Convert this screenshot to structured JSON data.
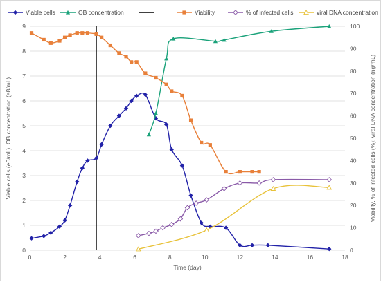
{
  "chart_data": {
    "type": "line",
    "xlabel": "Time (day)",
    "ylabel_left": "Viable cells (e6/mL); OB concentration (e8/mL)",
    "ylabel_right": "Viability, % of infected cells (%); viral DNA concentration (ng/mL)",
    "xlim": [
      0,
      18
    ],
    "ylim_left": [
      0,
      9
    ],
    "ylim_right": [
      0,
      100
    ],
    "x_ticks": [
      "0",
      "2",
      "4",
      "6",
      "8",
      "10",
      "12",
      "14",
      "16",
      "18"
    ],
    "y_left_ticks": [
      "0",
      "1",
      "2",
      "3",
      "4",
      "5",
      "6",
      "7",
      "8",
      "9"
    ],
    "y_right_ticks": [
      "0",
      "10",
      "20",
      "30",
      "40",
      "50",
      "60",
      "70",
      "80",
      "90",
      "100"
    ],
    "grid": "horizontal",
    "legend_position": "top",
    "vertical_line": {
      "name": "",
      "x": 3.8,
      "color": "#000000"
    },
    "series": [
      {
        "name": "Viable cells",
        "axis": "left",
        "color": "#2222a8",
        "marker": "diamond",
        "x": [
          0.1,
          0.8,
          1.2,
          1.7,
          2.0,
          2.3,
          2.7,
          3.0,
          3.3,
          3.8,
          4.1,
          4.6,
          5.1,
          5.5,
          5.8,
          6.1,
          6.6,
          7.2,
          7.8,
          8.1,
          8.7,
          9.2,
          9.8,
          10.3,
          11.2,
          12.0,
          12.7,
          13.6,
          17.1
        ],
        "y": [
          0.48,
          0.57,
          0.7,
          0.95,
          1.2,
          1.8,
          2.75,
          3.3,
          3.6,
          3.7,
          4.25,
          5.0,
          5.4,
          5.7,
          6.0,
          6.2,
          6.25,
          5.3,
          5.05,
          4.05,
          3.4,
          2.2,
          1.1,
          0.95,
          0.9,
          0.2,
          0.2,
          0.2,
          0.05
        ]
      },
      {
        "name": "OB concentration",
        "axis": "left",
        "color": "#1aa27a",
        "marker": "triangle",
        "x": [
          6.8,
          7.2,
          7.8,
          8.2,
          10.6,
          11.1,
          13.8,
          17.1
        ],
        "y": [
          4.65,
          5.5,
          7.7,
          8.5,
          8.4,
          8.45,
          8.8,
          9.0
        ]
      },
      {
        "name": "Viability",
        "axis": "right",
        "color": "#e8803a",
        "marker": "square",
        "x": [
          0.1,
          0.8,
          1.2,
          1.7,
          2.0,
          2.3,
          2.7,
          3.0,
          3.3,
          3.8,
          4.1,
          4.6,
          5.1,
          5.5,
          5.8,
          6.1,
          6.6,
          7.2,
          7.8,
          8.1,
          8.7,
          9.2,
          9.8,
          10.3,
          11.2,
          12.0,
          12.7,
          13.1
        ],
        "y": [
          97,
          94,
          92.5,
          93.5,
          95,
          96,
          97,
          97,
          97,
          96.5,
          95,
          91.5,
          88,
          86.5,
          84,
          84,
          79,
          77,
          74,
          71,
          69,
          58,
          48,
          47,
          35,
          35,
          35,
          35
        ]
      },
      {
        "name": "% of infected cells",
        "axis": "right",
        "color": "#8a5aa8",
        "marker": "diamond-open",
        "x": [
          6.2,
          6.8,
          7.2,
          7.6,
          8.1,
          8.6,
          9.0,
          9.5,
          10.1,
          11.1,
          12.0,
          13.1,
          13.9,
          17.1
        ],
        "y": [
          6.5,
          7.5,
          8.5,
          10,
          11.5,
          14,
          19,
          21,
          22.5,
          27.5,
          30,
          30,
          31.5,
          31.5
        ]
      },
      {
        "name": "viral DNA concentration",
        "axis": "right",
        "color": "#e8c23a",
        "marker": "triangle-open",
        "x": [
          6.2,
          10.1,
          13.9,
          17.1
        ],
        "y": [
          0.5,
          9,
          27.5,
          28
        ]
      }
    ]
  }
}
